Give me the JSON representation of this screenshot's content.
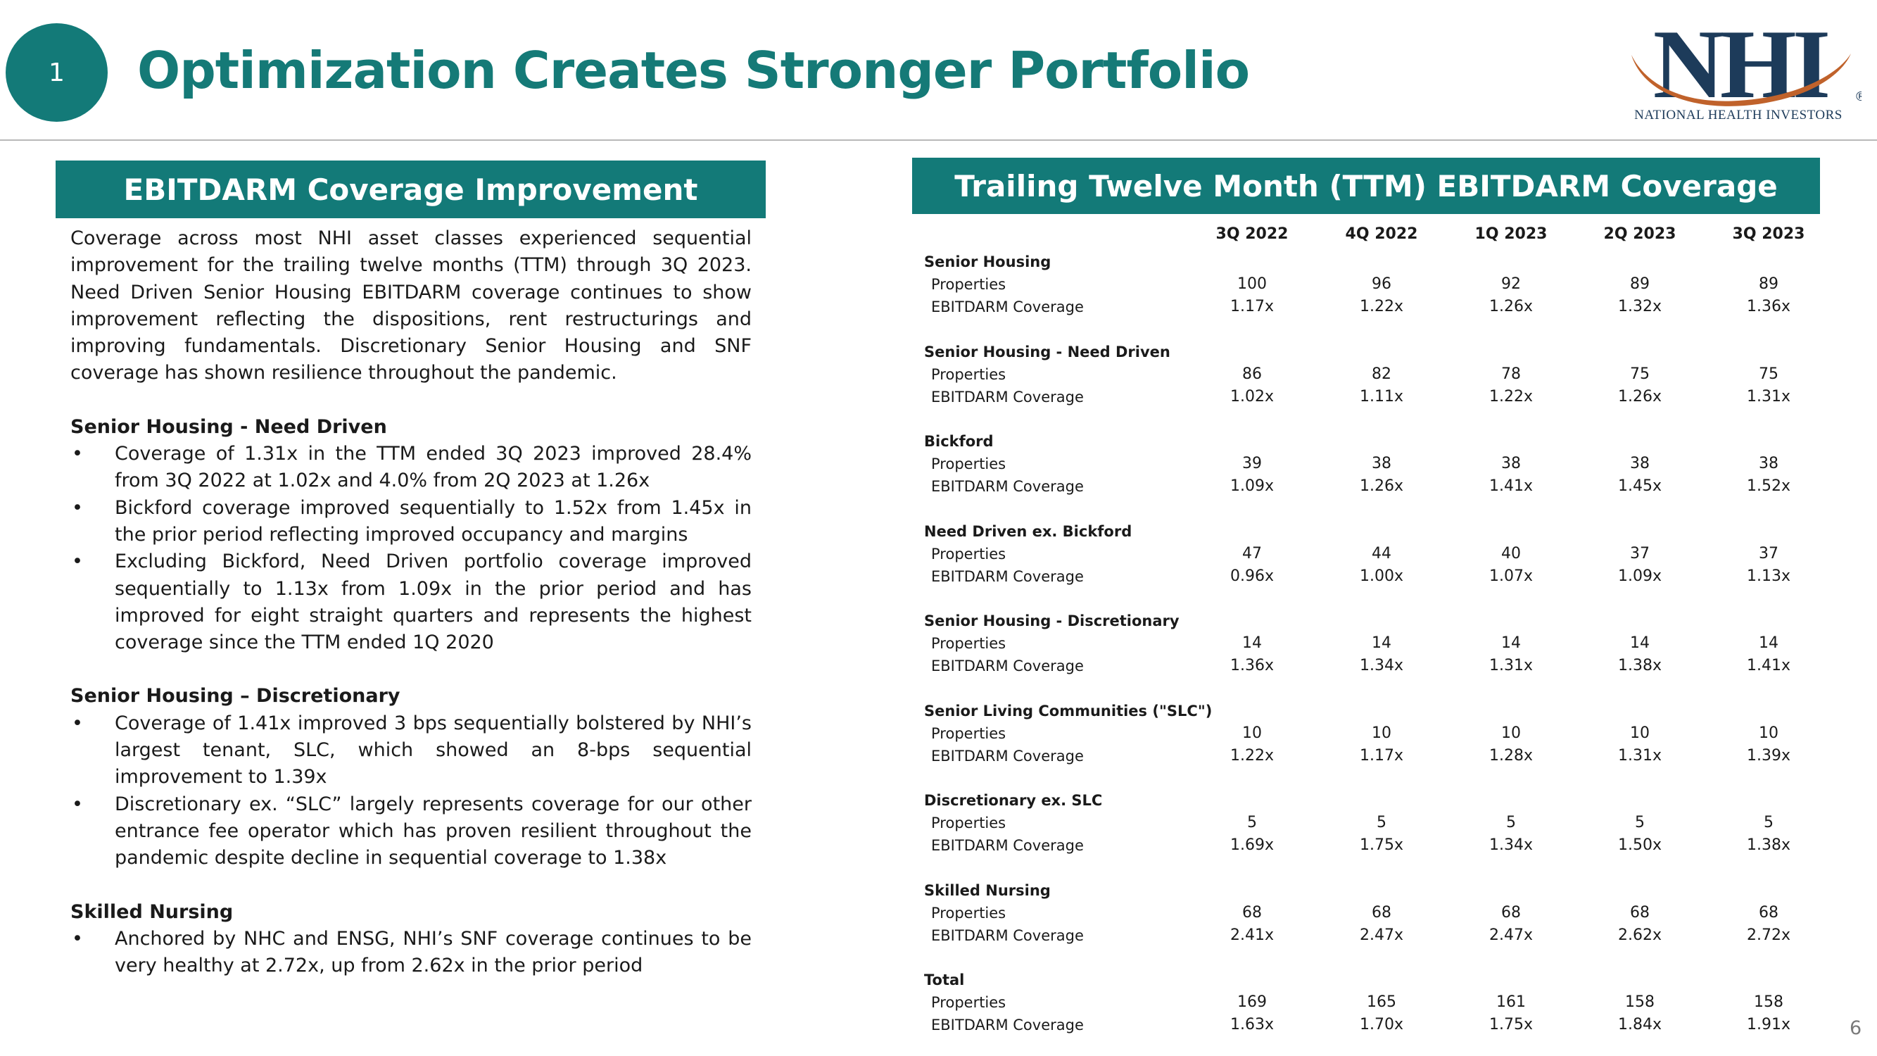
{
  "header": {
    "badge_number": "1",
    "title": "Optimization Creates Stronger Portfolio",
    "logo_text": "NHI",
    "logo_tagline": "NATIONAL HEALTH INVESTORS",
    "logo_registered": "®",
    "colors": {
      "teal": "#137a78",
      "navy": "#1d3b5a",
      "orange": "#c0622b"
    }
  },
  "left": {
    "header": "EBITDARM Coverage Improvement",
    "intro": "Coverage across most NHI asset classes experienced sequential improvement for the trailing twelve months (TTM) through 3Q 2023. Need Driven Senior Housing EBITDARM coverage continues to show improvement reflecting the dispositions, rent restructurings and improving fundamentals.  Discretionary Senior Housing and SNF coverage has shown resilience throughout the pandemic.",
    "sections": [
      {
        "title": "Senior Housing  - Need Driven",
        "bullets": [
          "Coverage of 1.31x in the TTM ended 3Q 2023 improved 28.4% from 3Q 2022 at 1.02x and 4.0% from 2Q 2023 at 1.26x",
          "Bickford coverage improved sequentially to 1.52x from 1.45x in the prior period reflecting improved occupancy and margins",
          "Excluding Bickford, Need Driven portfolio coverage improved sequentially to 1.13x from 1.09x in the prior period and has improved for eight straight quarters and represents the highest coverage since the TTM ended 1Q 2020"
        ]
      },
      {
        "title": "Senior Housing – Discretionary",
        "bullets": [
          "Coverage of 1.41x improved 3 bps sequentially bolstered by NHI’s largest tenant, SLC, which showed an 8-bps sequential improvement to 1.39x",
          "Discretionary ex. “SLC” largely represents coverage for our other entrance fee operator which has proven resilient throughout the pandemic despite decline in sequential coverage to 1.38x"
        ]
      },
      {
        "title": "Skilled Nursing",
        "bullets": [
          "Anchored by NHC and ENSG, NHI’s SNF coverage continues to be very healthy at 2.72x, up from 2.62x in the prior period"
        ]
      }
    ]
  },
  "right": {
    "header": "Trailing Twelve Month (TTM) EBITDARM Coverage",
    "columns": [
      "3Q 2022",
      "4Q 2022",
      "1Q 2023",
      "2Q 2023",
      "3Q 2023"
    ],
    "row_labels": {
      "properties": "Properties",
      "coverage": "EBITDARM Coverage"
    },
    "groups": [
      {
        "name": "Senior Housing",
        "properties": [
          "100",
          "96",
          "92",
          "89",
          "89"
        ],
        "coverage": [
          "1.17x",
          "1.22x",
          "1.26x",
          "1.32x",
          "1.36x"
        ]
      },
      {
        "name": "Senior Housing - Need Driven",
        "properties": [
          "86",
          "82",
          "78",
          "75",
          "75"
        ],
        "coverage": [
          "1.02x",
          "1.11x",
          "1.22x",
          "1.26x",
          "1.31x"
        ]
      },
      {
        "name": "Bickford",
        "properties": [
          "39",
          "38",
          "38",
          "38",
          "38"
        ],
        "coverage": [
          "1.09x",
          "1.26x",
          "1.41x",
          "1.45x",
          "1.52x"
        ]
      },
      {
        "name": "Need Driven ex. Bickford",
        "properties": [
          "47",
          "44",
          "40",
          "37",
          "37"
        ],
        "coverage": [
          "0.96x",
          "1.00x",
          "1.07x",
          "1.09x",
          "1.13x"
        ]
      },
      {
        "name": "Senior Housing - Discretionary",
        "properties": [
          "14",
          "14",
          "14",
          "14",
          "14"
        ],
        "coverage": [
          "1.36x",
          "1.34x",
          "1.31x",
          "1.38x",
          "1.41x"
        ]
      },
      {
        "name": "Senior Living Communities (\"SLC\")",
        "properties": [
          "10",
          "10",
          "10",
          "10",
          "10"
        ],
        "coverage": [
          "1.22x",
          "1.17x",
          "1.28x",
          "1.31x",
          "1.39x"
        ]
      },
      {
        "name": "Discretionary ex. SLC",
        "properties": [
          "5",
          "5",
          "5",
          "5",
          "5"
        ],
        "coverage": [
          "1.69x",
          "1.75x",
          "1.34x",
          "1.50x",
          "1.38x"
        ]
      },
      {
        "name": "Skilled Nursing",
        "properties": [
          "68",
          "68",
          "68",
          "68",
          "68"
        ],
        "coverage": [
          "2.41x",
          "2.47x",
          "2.47x",
          "2.62x",
          "2.72x"
        ]
      },
      {
        "name": "Total",
        "properties": [
          "169",
          "165",
          "161",
          "158",
          "158"
        ],
        "coverage": [
          "1.63x",
          "1.70x",
          "1.75x",
          "1.84x",
          "1.91x"
        ]
      }
    ]
  },
  "footer": {
    "page_number": "6"
  }
}
